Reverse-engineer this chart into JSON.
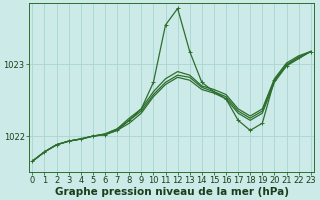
{
  "title": "Graphe pression niveau de la mer (hPa)",
  "background_color": "#cceae7",
  "grid_color": "#aad4d0",
  "line_color": "#2d6e2d",
  "x_labels": [
    "0",
    "1",
    "2",
    "3",
    "4",
    "5",
    "6",
    "7",
    "8",
    "9",
    "10",
    "11",
    "12",
    "13",
    "14",
    "15",
    "16",
    "17",
    "18",
    "19",
    "20",
    "21",
    "22",
    "23"
  ],
  "y_ticks": [
    1022,
    1023
  ],
  "ylim": [
    1021.5,
    1023.85
  ],
  "xlim": [
    -0.3,
    23.3
  ],
  "series": [
    [
      1021.65,
      1021.78,
      1021.88,
      1021.93,
      1021.96,
      1022.0,
      1022.02,
      1022.08,
      1022.22,
      1022.38,
      1022.75,
      1023.55,
      1023.78,
      1023.18,
      1022.75,
      1022.62,
      1022.52,
      1022.22,
      1022.08,
      1022.18,
      1022.78,
      1022.98,
      1023.1,
      1023.18
    ],
    [
      1021.65,
      1021.78,
      1021.88,
      1021.93,
      1021.96,
      1022.0,
      1022.02,
      1022.08,
      1022.18,
      1022.32,
      1022.55,
      1022.72,
      1022.82,
      1022.78,
      1022.65,
      1022.6,
      1022.52,
      1022.32,
      1022.22,
      1022.32,
      1022.75,
      1022.98,
      1023.08,
      1023.18
    ],
    [
      1021.65,
      1021.78,
      1021.88,
      1021.93,
      1021.96,
      1022.0,
      1022.03,
      1022.1,
      1022.22,
      1022.35,
      1022.58,
      1022.75,
      1022.85,
      1022.82,
      1022.68,
      1022.62,
      1022.55,
      1022.35,
      1022.25,
      1022.35,
      1022.78,
      1023.0,
      1023.1,
      1023.18
    ],
    [
      1021.65,
      1021.78,
      1021.88,
      1021.93,
      1021.96,
      1022.0,
      1022.03,
      1022.1,
      1022.25,
      1022.38,
      1022.62,
      1022.8,
      1022.9,
      1022.85,
      1022.7,
      1022.65,
      1022.58,
      1022.38,
      1022.28,
      1022.38,
      1022.8,
      1023.02,
      1023.12,
      1023.18
    ]
  ],
  "marker": "+",
  "marker_size": 3.5,
  "linewidth": 0.9,
  "title_fontsize": 7.5,
  "tick_fontsize": 6.0
}
